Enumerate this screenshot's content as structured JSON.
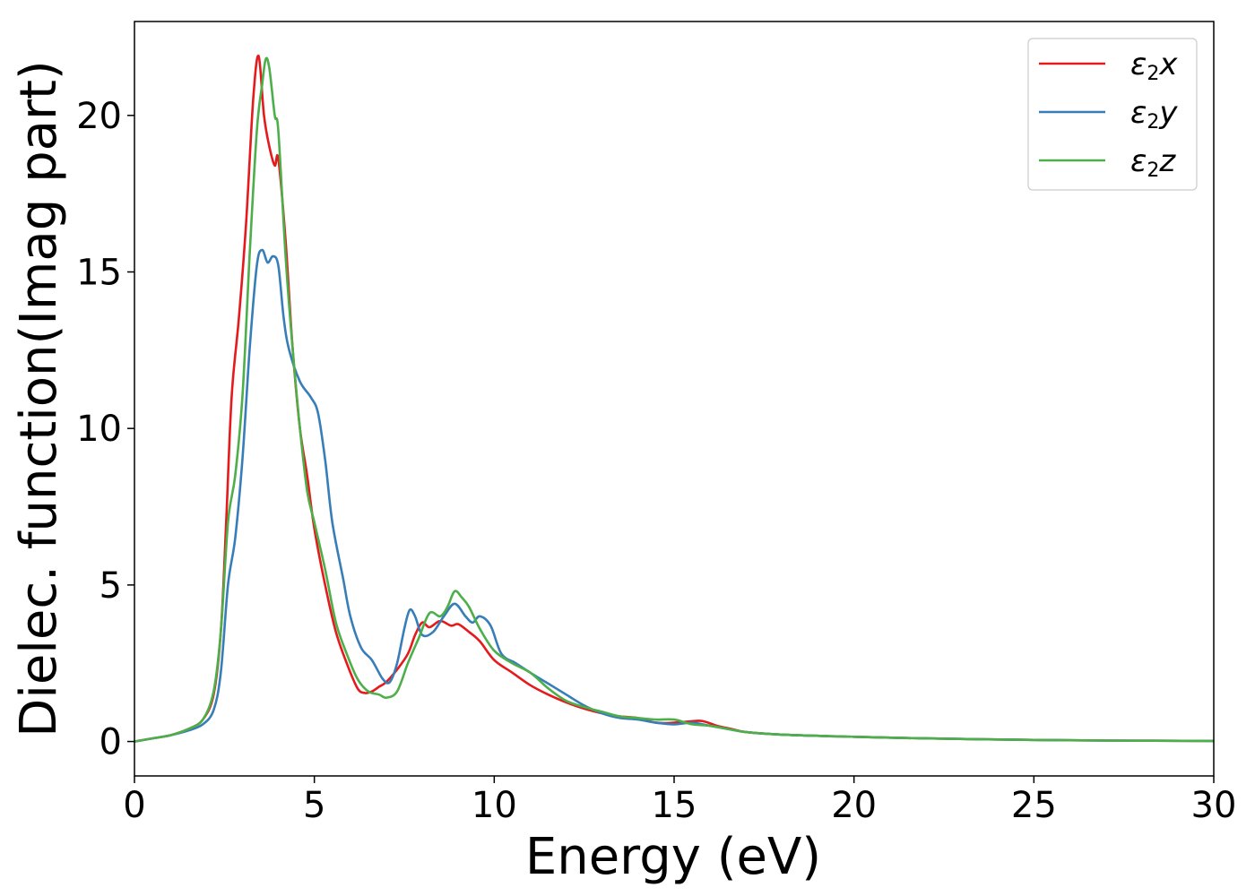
{
  "chart_data": {
    "type": "line",
    "xlabel": "Energy (eV)",
    "ylabel": "Dielec. function(Imag part)",
    "xlim": [
      0,
      30
    ],
    "ylim": [
      -1.1,
      23
    ],
    "xticks": [
      0,
      5,
      10,
      15,
      20,
      25,
      30
    ],
    "yticks": [
      0,
      5,
      10,
      15,
      20
    ],
    "grid": false,
    "legend_position": "top-right",
    "series": [
      {
        "name": "ε2x",
        "label_parts": [
          "ε",
          "2",
          "x"
        ],
        "color": "#e41a1c",
        "x": [
          0,
          0.5,
          1.0,
          1.5,
          1.9,
          2.2,
          2.4,
          2.55,
          2.7,
          2.9,
          3.1,
          3.3,
          3.45,
          3.6,
          3.75,
          3.9,
          4.0,
          4.2,
          4.4,
          4.6,
          4.8,
          5.0,
          5.3,
          5.6,
          5.9,
          6.2,
          6.4,
          6.6,
          6.8,
          7.0,
          7.3,
          7.6,
          7.8,
          8.0,
          8.2,
          8.5,
          8.8,
          9.0,
          9.3,
          9.6,
          10.0,
          10.5,
          11.0,
          11.5,
          12.0,
          12.5,
          13.0,
          13.5,
          14.0,
          14.5,
          15.0,
          15.5,
          15.8,
          16.2,
          16.6,
          17.0,
          18.0,
          20.0,
          22.0,
          25.0,
          27.0,
          30.0
        ],
        "y": [
          0.0,
          0.1,
          0.2,
          0.4,
          0.7,
          1.5,
          3.5,
          7.0,
          11.0,
          13.5,
          16.5,
          20.5,
          21.9,
          20.0,
          19.0,
          18.4,
          18.6,
          16.0,
          12.5,
          10.0,
          8.5,
          6.8,
          5.0,
          3.5,
          2.5,
          1.7,
          1.55,
          1.6,
          1.75,
          1.9,
          2.3,
          2.8,
          3.4,
          3.8,
          3.65,
          3.85,
          3.7,
          3.75,
          3.5,
          3.2,
          2.6,
          2.2,
          1.8,
          1.5,
          1.25,
          1.05,
          0.9,
          0.8,
          0.75,
          0.6,
          0.6,
          0.65,
          0.65,
          0.5,
          0.4,
          0.3,
          0.22,
          0.15,
          0.1,
          0.05,
          0.03,
          0.02
        ]
      },
      {
        "name": "ε2y",
        "label_parts": [
          "ε",
          "2",
          "y"
        ],
        "color": "#377eb8",
        "x": [
          0,
          0.5,
          1.0,
          1.5,
          1.9,
          2.2,
          2.4,
          2.6,
          2.8,
          3.0,
          3.2,
          3.4,
          3.55,
          3.7,
          3.85,
          4.0,
          4.15,
          4.3,
          4.6,
          4.9,
          5.1,
          5.3,
          5.5,
          5.8,
          6.0,
          6.3,
          6.6,
          6.9,
          7.1,
          7.3,
          7.5,
          7.65,
          7.8,
          8.0,
          8.3,
          8.6,
          8.9,
          9.2,
          9.4,
          9.6,
          9.9,
          10.2,
          10.6,
          11.0,
          11.5,
          12.0,
          12.5,
          13.0,
          13.5,
          14.0,
          14.5,
          15.0,
          15.5,
          16.0,
          16.5,
          17.0,
          18.0,
          20.0,
          22.0,
          25.0,
          27.0,
          30.0
        ],
        "y": [
          0.0,
          0.1,
          0.2,
          0.35,
          0.55,
          1.0,
          2.2,
          5.0,
          6.5,
          9.0,
          12.5,
          15.2,
          15.7,
          15.3,
          15.5,
          15.2,
          13.5,
          12.5,
          11.5,
          11.0,
          10.5,
          9.0,
          7.0,
          5.2,
          4.0,
          3.0,
          2.6,
          2.0,
          1.9,
          2.5,
          3.6,
          4.2,
          4.0,
          3.4,
          3.5,
          4.0,
          4.4,
          4.0,
          3.8,
          4.0,
          3.7,
          2.8,
          2.5,
          2.2,
          1.85,
          1.5,
          1.15,
          0.9,
          0.75,
          0.7,
          0.6,
          0.55,
          0.6,
          0.5,
          0.4,
          0.3,
          0.22,
          0.15,
          0.1,
          0.05,
          0.03,
          0.02
        ]
      },
      {
        "name": "ε2z",
        "label_parts": [
          "ε",
          "2",
          "z"
        ],
        "color": "#4daf4a",
        "x": [
          0,
          0.5,
          1.0,
          1.5,
          1.9,
          2.2,
          2.4,
          2.6,
          2.8,
          3.0,
          3.2,
          3.4,
          3.55,
          3.65,
          3.75,
          3.9,
          4.0,
          4.2,
          4.4,
          4.6,
          4.8,
          5.0,
          5.3,
          5.6,
          5.9,
          6.2,
          6.5,
          6.8,
          7.0,
          7.3,
          7.6,
          7.9,
          8.2,
          8.5,
          8.7,
          8.9,
          9.1,
          9.3,
          9.6,
          10.0,
          10.5,
          11.0,
          11.5,
          12.0,
          12.5,
          13.0,
          13.5,
          14.0,
          14.5,
          15.0,
          15.5,
          16.0,
          16.5,
          17.0,
          18.0,
          20.0,
          22.0,
          25.0,
          27.0,
          30.0
        ],
        "y": [
          0.0,
          0.1,
          0.2,
          0.4,
          0.7,
          1.6,
          3.5,
          7.0,
          8.5,
          11.0,
          15.5,
          19.5,
          21.0,
          21.8,
          21.5,
          20.0,
          19.5,
          15.5,
          12.5,
          10.0,
          8.0,
          7.0,
          5.5,
          3.8,
          2.8,
          2.0,
          1.6,
          1.5,
          1.4,
          1.6,
          2.5,
          3.3,
          4.1,
          4.0,
          4.3,
          4.8,
          4.6,
          4.3,
          3.6,
          2.9,
          2.5,
          2.2,
          1.7,
          1.3,
          1.1,
          0.95,
          0.8,
          0.75,
          0.7,
          0.7,
          0.55,
          0.5,
          0.4,
          0.3,
          0.22,
          0.15,
          0.1,
          0.05,
          0.03,
          0.02
        ]
      }
    ]
  }
}
